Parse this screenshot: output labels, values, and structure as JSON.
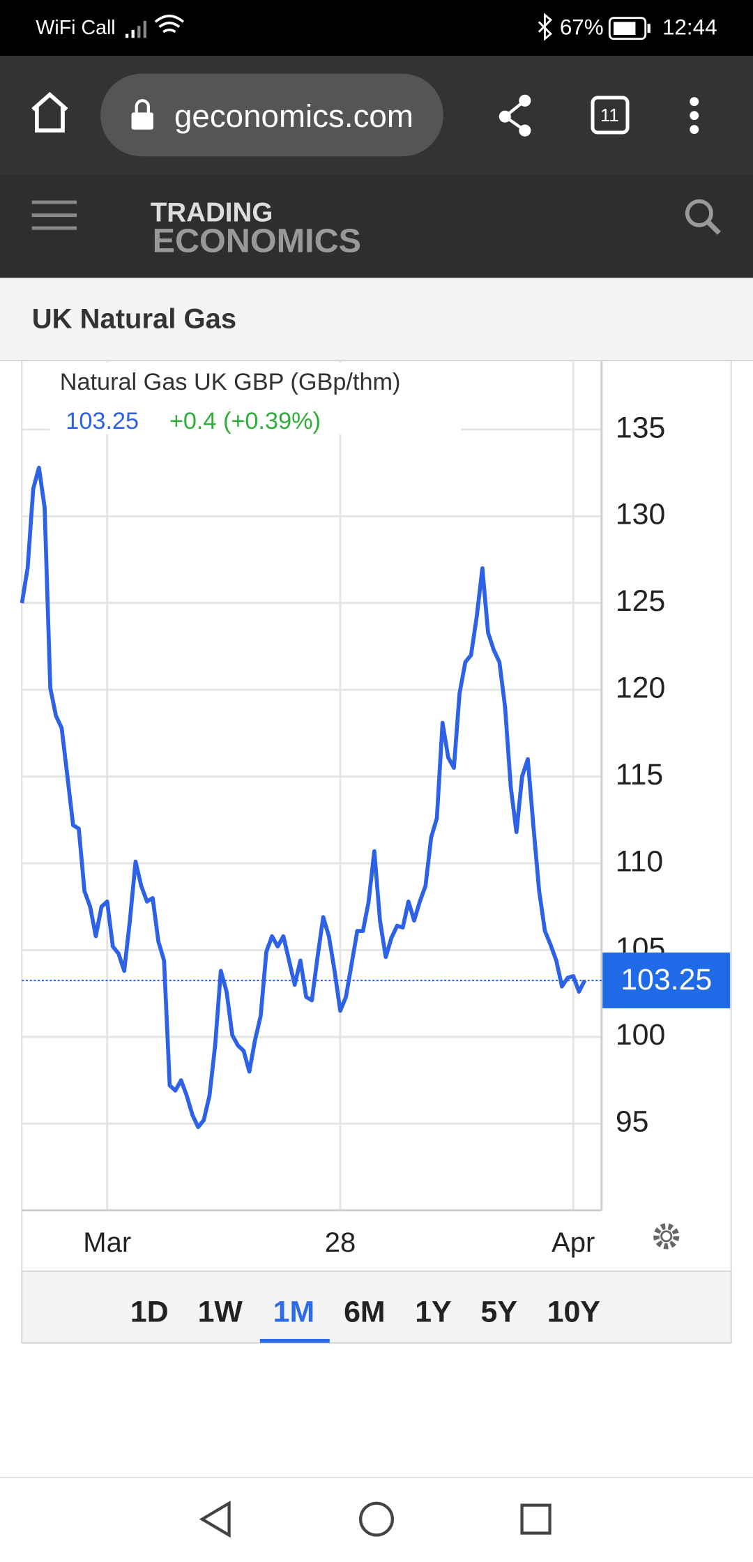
{
  "status_bar": {
    "carrier": "WiFi Call",
    "battery": "67%",
    "time": "12:44"
  },
  "browser": {
    "url": "geconomics.com",
    "tab_count": "11"
  },
  "site": {
    "logo_top": "TRADING",
    "logo_bottom": "ECONOMICS",
    "page_title": "UK Natural Gas"
  },
  "chart_data": {
    "type": "line",
    "grid": true,
    "change": "+0.4 (+0.39%)",
    "categories": [
      null,
      null,
      null,
      null,
      null,
      null,
      null,
      null,
      null,
      null,
      null,
      null,
      null,
      null,
      null,
      "Mar",
      null,
      null,
      null,
      null,
      null,
      null,
      null,
      null,
      null,
      null,
      null,
      null,
      null,
      null,
      null,
      null,
      null,
      null,
      null,
      null,
      null,
      null,
      null,
      null,
      null,
      null,
      null,
      null,
      null,
      null,
      null,
      null,
      null,
      null,
      null,
      null,
      null,
      null,
      null,
      null,
      "28",
      null,
      null,
      null,
      null,
      null,
      null,
      null,
      null,
      null,
      null,
      null,
      null,
      null,
      null,
      null,
      null,
      null,
      null,
      null,
      null,
      null,
      null,
      null,
      null,
      null,
      null,
      null,
      null,
      null,
      null,
      null,
      null,
      null,
      null,
      null,
      null,
      null,
      null,
      null,
      null,
      "Apr",
      null,
      null
    ],
    "series": [
      {
        "name": "Natural Gas UK GBP (GBp/thm)",
        "color": "#2e62e6",
        "values": [
          125,
          127,
          131.6,
          132.8,
          130.5,
          120.1,
          118.5,
          117.8,
          115,
          112.2,
          112,
          108.4,
          107.5,
          105.8,
          107.5,
          107.8,
          105.2,
          104.8,
          103.8,
          106.7,
          110.1,
          108.7,
          107.8,
          108,
          105.5,
          104.4,
          97.2,
          96.9,
          97.5,
          96.6,
          95.5,
          94.8,
          95.2,
          96.6,
          99.5,
          103.8,
          102.6,
          100.1,
          99.5,
          99.2,
          98,
          99.8,
          101.2,
          104.9,
          105.8,
          105.2,
          105.8,
          104.4,
          103,
          104.4,
          102.3,
          102.1,
          104.6,
          106.9,
          105.8,
          103.8,
          101.5,
          102.3,
          104.2,
          106.1,
          106.1,
          107.8,
          110.7,
          106.7,
          104.6,
          105.7,
          106.4,
          106.3,
          107.8,
          106.7,
          107.8,
          108.7,
          111.5,
          112.6,
          118.1,
          116.1,
          115.5,
          119.8,
          121.6,
          122,
          124.2,
          127,
          123.3,
          122.3,
          121.6,
          119,
          114.4,
          111.8,
          115,
          116,
          112.1,
          108.4,
          106.1,
          105.3,
          104.4,
          102.9,
          103.4,
          103.5,
          102.6,
          103.25
        ]
      }
    ],
    "ylim": [
      90,
      138.8
    ],
    "yticks": [
      95,
      100,
      105,
      110,
      115,
      120,
      125,
      130,
      135
    ],
    "ranges": [
      "1D",
      "1W",
      "1M",
      "6M",
      "1Y",
      "5Y",
      "10Y"
    ],
    "selected_range": "1M"
  }
}
